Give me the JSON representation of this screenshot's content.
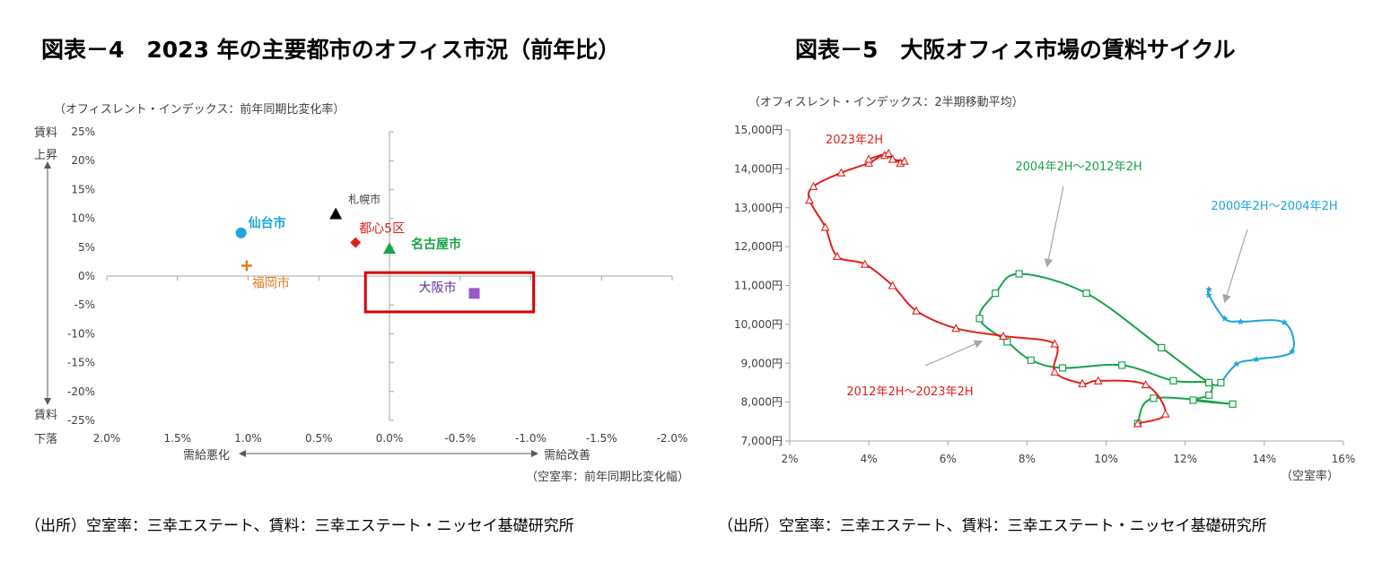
{
  "chart4": {
    "title": "図表－4　2023 年の主要都市のオフィス市況（前年比）",
    "source": "（出所）空室率：三幸エステート、賃料：三幸エステート・ニッセイ基礎研究所",
    "ylabel": "（オフィスレント・インデックス：前年同期比変化率）",
    "xlabel": "（空室率：前年同期比変化幅）",
    "up_label_1": "賃料",
    "up_label_2": "上昇",
    "down_label_1": "賃料",
    "down_label_2": "下落",
    "worse_label": "需給悪化",
    "better_label": "需給改善",
    "colors": {
      "sendai": "#1ca4dc",
      "sapporo": "#000000",
      "toshin": "#e0201b",
      "nagoya": "#1aa24a",
      "fukuoka": "#e07b20",
      "osaka": "#9b59c8",
      "highlight": "#d40000"
    }
  },
  "chart5": {
    "title": "図表－5　大阪オフィス市場の賃料サイクル",
    "source": "（出所）空室率：三幸エステート、賃料：三幸エステート・ニッセイ基礎研究所",
    "ylabel": "（オフィスレント・インデックス：2半期移動平均）",
    "xlabel": "（空室率）",
    "colors": {
      "red": "#e0201b",
      "green": "#1aa24a",
      "blue": "#1ca4dc",
      "arrow": "#a6a6a6"
    }
  },
  "chart_data": [
    {
      "type": "scatter",
      "title": "図表－4　2023 年の主要都市のオフィス市況（前年比）",
      "xlabel": "（空室率：前年同期比変化幅）",
      "ylabel": "（オフィスレント・インデックス：前年同期比変化率）",
      "x_reversed": true,
      "xlim": [
        2.0,
        -2.0
      ],
      "ylim": [
        -25,
        25
      ],
      "x_ticks": [
        "2.0%",
        "1.5%",
        "1.0%",
        "0.5%",
        "0.0%",
        "-0.5%",
        "-1.0%",
        "-1.5%",
        "-2.0%"
      ],
      "y_ticks": [
        "25%",
        "20%",
        "15%",
        "10%",
        "5%",
        "0%",
        "-5%",
        "-10%",
        "-15%",
        "-20%",
        "-25%"
      ],
      "points": [
        {
          "name": "仙台市",
          "x": 1.05,
          "y": 7.5,
          "marker": "circle",
          "color_key": "sendai",
          "bold": true
        },
        {
          "name": "札幌市",
          "x": 0.38,
          "y": 10.8,
          "marker": "triangle",
          "color_key": "sapporo",
          "bold": false
        },
        {
          "name": "都心5区",
          "x": 0.24,
          "y": 5.8,
          "marker": "diamond",
          "color_key": "toshin",
          "bold": false
        },
        {
          "name": "名古屋市",
          "x": 0.0,
          "y": 4.8,
          "marker": "triangle",
          "color_key": "nagoya",
          "bold": true
        },
        {
          "name": "福岡市",
          "x": 1.01,
          "y": 1.8,
          "marker": "plus",
          "color_key": "fukuoka",
          "bold": false
        },
        {
          "name": "大阪市",
          "x": -0.6,
          "y": -3.0,
          "marker": "square",
          "color_key": "osaka",
          "bold": false
        }
      ],
      "highlight": "大阪市"
    },
    {
      "type": "line",
      "title": "図表－5　大阪オフィス市場の賃料サイクル",
      "xlabel": "（空室率）",
      "ylabel": "（オフィスレント・インデックス：2半期移動平均）",
      "xlim": [
        2,
        16
      ],
      "ylim": [
        7000,
        15000
      ],
      "x_ticks": [
        "2%",
        "4%",
        "6%",
        "8%",
        "10%",
        "12%",
        "14%",
        "16%"
      ],
      "y_ticks": [
        "15,000円",
        "14,000円",
        "13,000円",
        "12,000円",
        "11,000円",
        "10,000円",
        "9,000円",
        "8,000円",
        "7,000円"
      ],
      "series": [
        {
          "name": "2000年2H～2004年2H",
          "color_key": "blue",
          "marker": "star",
          "points": [
            [
              12.6,
              10900
            ],
            [
              12.6,
              10750
            ],
            [
              13.0,
              10150
            ],
            [
              13.4,
              10070
            ],
            [
              14.5,
              10050
            ],
            [
              14.7,
              9300
            ],
            [
              13.8,
              9100
            ],
            [
              13.3,
              8980
            ],
            [
              12.9,
              8500
            ]
          ]
        },
        {
          "name": "2004年2H～2012年2H",
          "color_key": "green",
          "marker": "square",
          "points": [
            [
              12.9,
              8500
            ],
            [
              12.6,
              8500
            ],
            [
              11.4,
              9400
            ],
            [
              9.5,
              10800
            ],
            [
              7.8,
              11300
            ],
            [
              7.2,
              10800
            ],
            [
              6.8,
              10150
            ],
            [
              7.5,
              9550
            ],
            [
              8.1,
              9080
            ],
            [
              8.9,
              8880
            ],
            [
              10.4,
              8950
            ],
            [
              11.7,
              8550
            ],
            [
              12.6,
              8500
            ],
            [
              12.6,
              8180
            ],
            [
              12.2,
              8050
            ],
            [
              13.2,
              7950
            ],
            [
              11.2,
              8100
            ],
            [
              10.8,
              7450
            ]
          ]
        },
        {
          "name": "2012年2H～2023年2H",
          "color_key": "red",
          "marker": "triangle",
          "points": [
            [
              10.8,
              7450
            ],
            [
              11.5,
              7700
            ],
            [
              11.0,
              8450
            ],
            [
              9.8,
              8550
            ],
            [
              9.4,
              8480
            ],
            [
              8.7,
              8780
            ],
            [
              8.7,
              9500
            ],
            [
              7.4,
              9700
            ],
            [
              6.2,
              9900
            ],
            [
              5.2,
              10350
            ],
            [
              4.6,
              11000
            ],
            [
              3.9,
              11550
            ],
            [
              3.2,
              11750
            ],
            [
              2.9,
              12500
            ],
            [
              2.5,
              13200
            ],
            [
              2.6,
              13550
            ],
            [
              3.3,
              13900
            ],
            [
              4.0,
              14150
            ],
            [
              4.4,
              14350
            ],
            [
              4.8,
              14150
            ],
            [
              4.9,
              14200
            ],
            [
              4.6,
              14250
            ],
            [
              4.5,
              14400
            ],
            [
              4.0,
              14250
            ]
          ]
        }
      ],
      "annotations": [
        {
          "text": "2023年2H",
          "color_key": "red"
        },
        {
          "text": "2004年2H～2012年2H",
          "color_key": "green"
        },
        {
          "text": "2000年2H～2004年2H",
          "color_key": "blue"
        },
        {
          "text": "2012年2H～2023年2H",
          "color_key": "red"
        }
      ]
    }
  ]
}
